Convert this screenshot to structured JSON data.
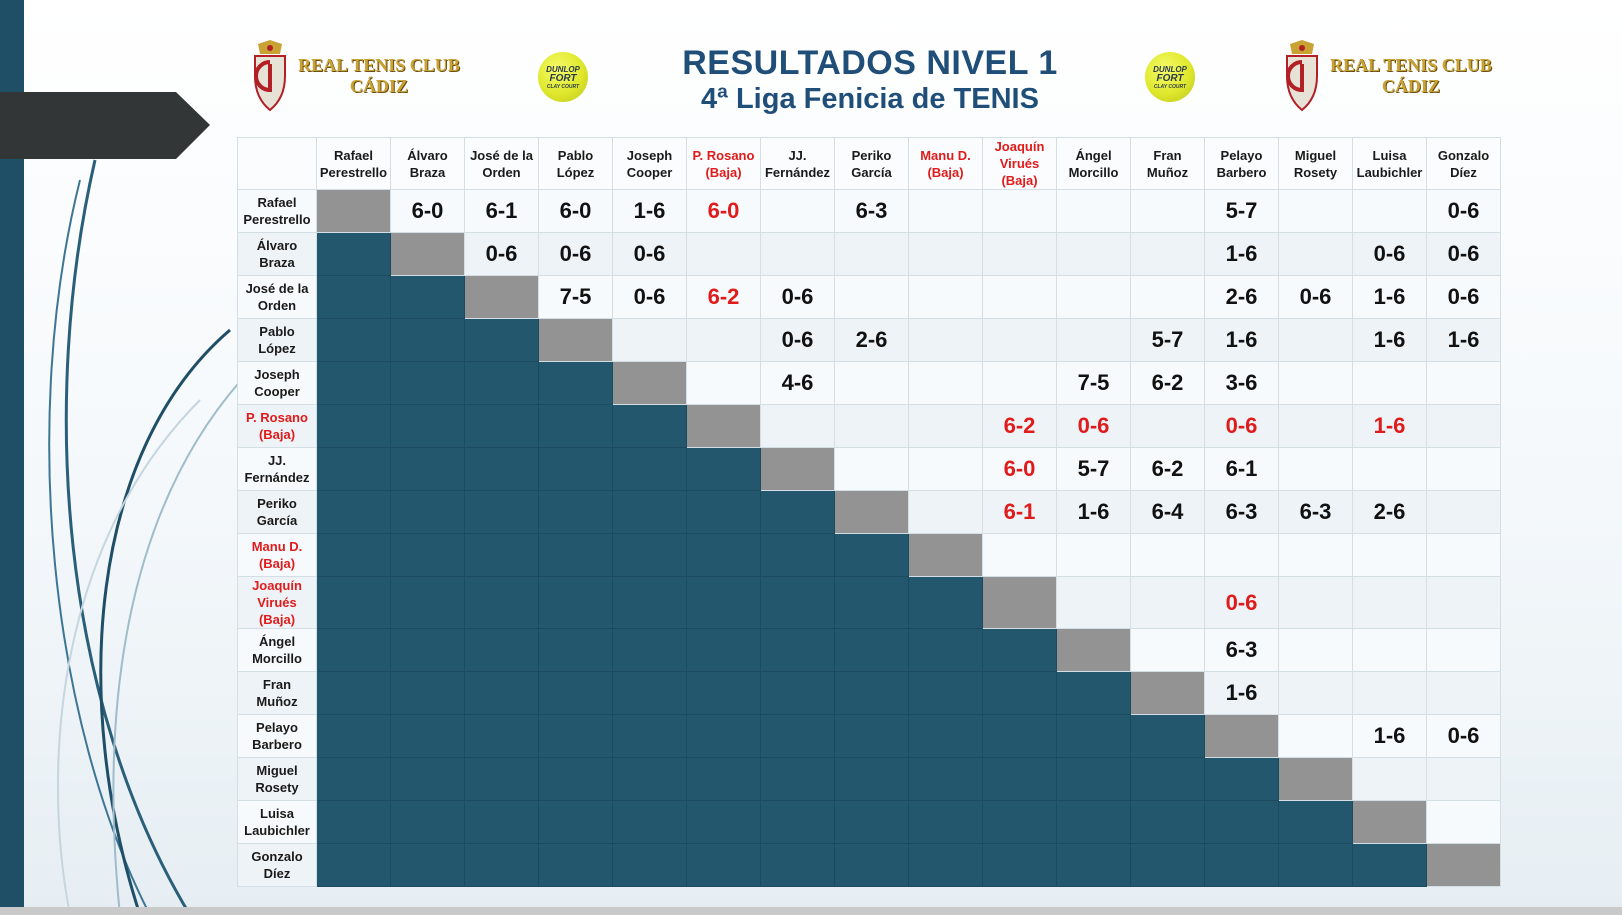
{
  "header": {
    "title_line1": "RESULTADOS NIVEL 1",
    "title_line2": "4ª Liga Fenicia de TENIS",
    "club_line1": "REAL TENIS CLUB",
    "club_line2": "CÁDIZ",
    "ball_brand_line1": "DUNLOP",
    "ball_brand_line2": "FORT",
    "ball_brand_line3": "CLAY COURT"
  },
  "colors": {
    "title": "#1f4e79",
    "lower_triangle": "#22576e",
    "diagonal": "#939393",
    "withdrawn": "#e01b1b"
  },
  "players": [
    {
      "line1": "Rafael",
      "line2": "Perestrello",
      "withdrawn": false
    },
    {
      "line1": "Álvaro",
      "line2": "Braza",
      "withdrawn": false
    },
    {
      "line1": "José de la",
      "line2": "Orden",
      "withdrawn": false
    },
    {
      "line1": "Pablo",
      "line2": "López",
      "withdrawn": false
    },
    {
      "line1": "Joseph",
      "line2": "Cooper",
      "withdrawn": false
    },
    {
      "line1": "P. Rosano",
      "line2": "(Baja)",
      "withdrawn": true
    },
    {
      "line1": "JJ.",
      "line2": "Fernández",
      "withdrawn": false
    },
    {
      "line1": "Periko",
      "line2": "García",
      "withdrawn": false
    },
    {
      "line1": "Manu D.",
      "line2": "(Baja)",
      "withdrawn": true
    },
    {
      "line1": "Joaquín",
      "line2": "Virués (Baja)",
      "withdrawn": true
    },
    {
      "line1": "Ángel",
      "line2": "Morcillo",
      "withdrawn": false
    },
    {
      "line1": "Fran",
      "line2": "Muñoz",
      "withdrawn": false
    },
    {
      "line1": "Pelayo",
      "line2": "Barbero",
      "withdrawn": false
    },
    {
      "line1": "Miguel",
      "line2": "Rosety",
      "withdrawn": false
    },
    {
      "line1": "Luisa",
      "line2": "Laubichler",
      "withdrawn": false
    },
    {
      "line1": "Gonzalo",
      "line2": "Díez",
      "withdrawn": false
    }
  ],
  "row_headers": [
    "Rafael Perestrello",
    "Álvaro Braza",
    "José de la Orden",
    "Pablo López",
    "Joseph Cooper",
    "P. Rosano (Baja)",
    "JJ. Fernández",
    "Periko García",
    "Manu D. (Baja)",
    "Joaquín Virués (Baja)",
    "Ángel Morcillo",
    "Fran Muñoz",
    "Pelayo Barbero",
    "Miguel Rosety",
    "Luisa Laubichler",
    "Gonzalo Díez"
  ],
  "results": [
    [
      "",
      "6-0",
      "6-1",
      "6-0",
      "1-6",
      "6-0",
      "",
      "6-3",
      "",
      "",
      "",
      "",
      "5-7",
      "",
      "",
      "0-6"
    ],
    [
      "",
      "",
      "0-6",
      "0-6",
      "0-6",
      "",
      "",
      "",
      "",
      "",
      "",
      "",
      "1-6",
      "",
      "0-6",
      "0-6"
    ],
    [
      "",
      "",
      "",
      "7-5",
      "0-6",
      "6-2",
      "0-6",
      "",
      "",
      "",
      "",
      "",
      "2-6",
      "0-6",
      "1-6",
      "0-6"
    ],
    [
      "",
      "",
      "",
      "",
      "",
      "",
      "0-6",
      "2-6",
      "",
      "",
      "",
      "5-7",
      "1-6",
      "",
      "1-6",
      "1-6"
    ],
    [
      "",
      "",
      "",
      "",
      "",
      "",
      "4-6",
      "",
      "",
      "",
      "7-5",
      "6-2",
      "3-6",
      "",
      "",
      ""
    ],
    [
      "",
      "",
      "",
      "",
      "",
      "",
      "",
      "",
      "",
      "6-2",
      "0-6",
      "",
      "0-6",
      "",
      "1-6",
      ""
    ],
    [
      "",
      "",
      "",
      "",
      "",
      "",
      "",
      "",
      "",
      "6-0",
      "5-7",
      "6-2",
      "6-1",
      "",
      "",
      ""
    ],
    [
      "",
      "",
      "",
      "",
      "",
      "",
      "",
      "",
      "",
      "6-1",
      "1-6",
      "6-4",
      "6-3",
      "6-3",
      "2-6",
      ""
    ],
    [
      "",
      "",
      "",
      "",
      "",
      "",
      "",
      "",
      "",
      "",
      "",
      "",
      "",
      "",
      "",
      ""
    ],
    [
      "",
      "",
      "",
      "",
      "",
      "",
      "",
      "",
      "",
      "",
      "",
      "",
      "0-6",
      "",
      "",
      ""
    ],
    [
      "",
      "",
      "",
      "",
      "",
      "",
      "",
      "",
      "",
      "",
      "",
      "",
      "6-3",
      "",
      "",
      ""
    ],
    [
      "",
      "",
      "",
      "",
      "",
      "",
      "",
      "",
      "",
      "",
      "",
      "",
      "1-6",
      "",
      "",
      ""
    ],
    [
      "",
      "",
      "",
      "",
      "",
      "",
      "",
      "",
      "",
      "",
      "",
      "",
      "",
      "",
      "1-6",
      "0-6"
    ],
    [
      "",
      "",
      "",
      "",
      "",
      "",
      "",
      "",
      "",
      "",
      "",
      "",
      "",
      "",
      "",
      ""
    ],
    [
      "",
      "",
      "",
      "",
      "",
      "",
      "",
      "",
      "",
      "",
      "",
      "",
      "",
      "",
      "",
      ""
    ],
    [
      "",
      "",
      "",
      "",
      "",
      "",
      "",
      "",
      "",
      "",
      "",
      "",
      "",
      "",
      "",
      ""
    ]
  ],
  "red_cells": [
    [
      0,
      5
    ],
    [
      2,
      5
    ],
    [
      5,
      9
    ],
    [
      5,
      10
    ],
    [
      5,
      12
    ],
    [
      5,
      14
    ],
    [
      6,
      9
    ],
    [
      7,
      9
    ],
    [
      9,
      12
    ]
  ]
}
